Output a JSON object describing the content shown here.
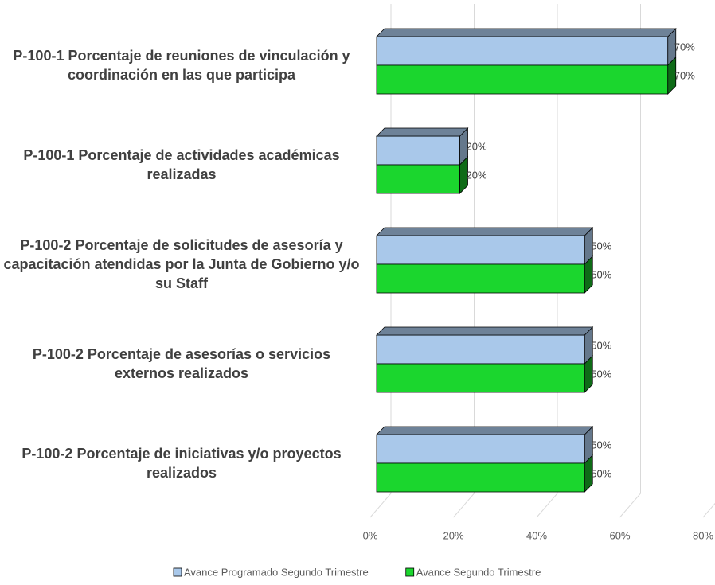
{
  "chart_data": {
    "type": "bar3d_horizontal",
    "categories": [
      "P-100-1 Porcentaje de reuniones de vinculación y coordinación en las que participa",
      "P-100-1 Porcentaje de actividades académicas realizadas",
      "P-100-2 Porcentaje de solicitudes de asesoría y capacitación atendidas por la Junta de Gobierno y/o su Staff",
      "P-100-2 Porcentaje de asesorías o servicios externos realizados",
      "P-100-2 Porcentaje de iniciativas y/o proyectos realizados"
    ],
    "series": [
      {
        "name": "Avance Programado Segundo Trimestre",
        "color": "#a9c8ea",
        "values": [
          70,
          20,
          50,
          50,
          50
        ],
        "value_labels": [
          "70%",
          "20%",
          "50%",
          "50%",
          "50%"
        ]
      },
      {
        "name": "Avance Segundo Trimestre",
        "color": "#1bd62e",
        "values": [
          70,
          20,
          50,
          50,
          50
        ],
        "value_labels": [
          "70%",
          "20%",
          "50%",
          "50%",
          "50%"
        ]
      }
    ],
    "xlim": [
      0,
      80
    ],
    "xticks": [
      {
        "value": 0,
        "label": "0%"
      },
      {
        "value": 20,
        "label": "20%"
      },
      {
        "value": 40,
        "label": "40%"
      },
      {
        "value": 60,
        "label": "60%"
      },
      {
        "value": 80,
        "label": "80%"
      }
    ],
    "grid": true,
    "legend": "bottom"
  }
}
